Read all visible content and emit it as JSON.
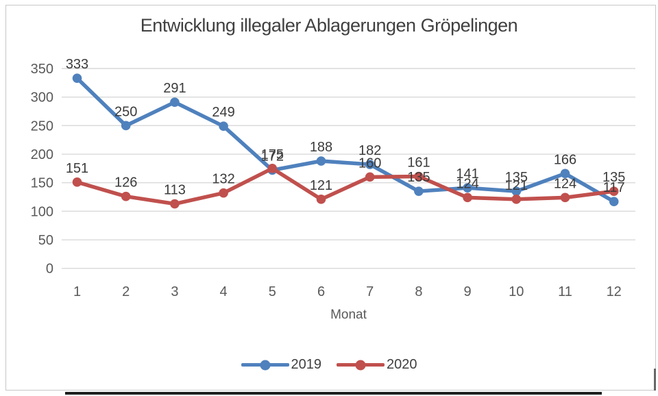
{
  "chart_data": {
    "type": "line",
    "title": "Entwicklung illegaler Ablagerungen Gröpelingen",
    "xlabel": "Monat",
    "categories": [
      "1",
      "2",
      "3",
      "4",
      "5",
      "6",
      "7",
      "8",
      "9",
      "10",
      "11",
      "12"
    ],
    "series": [
      {
        "name": "2019",
        "color": "#4F81BD",
        "values": [
          333,
          250,
          291,
          249,
          172,
          188,
          182,
          135,
          141,
          135,
          166,
          117
        ]
      },
      {
        "name": "2020",
        "color": "#C0504D",
        "values": [
          151,
          126,
          113,
          132,
          175,
          121,
          160,
          161,
          124,
          121,
          124,
          135
        ]
      }
    ],
    "y_ticks": [
      350,
      300,
      250,
      200,
      150,
      100,
      50,
      0
    ],
    "ylim": [
      0,
      350
    ],
    "grid": true,
    "legend_position": "bottom",
    "data_labels": "above",
    "marker": "circle"
  },
  "colors": {
    "background": "#FFFFFF",
    "frame_border": "#C6C6C6",
    "gridline": "#D9D9D9",
    "axis_text": "#595959",
    "data_label_text": "#3B3B3B",
    "title_text": "#404040",
    "bottom_line": "#1F1F1F",
    "edge_artifact": "#666666"
  }
}
